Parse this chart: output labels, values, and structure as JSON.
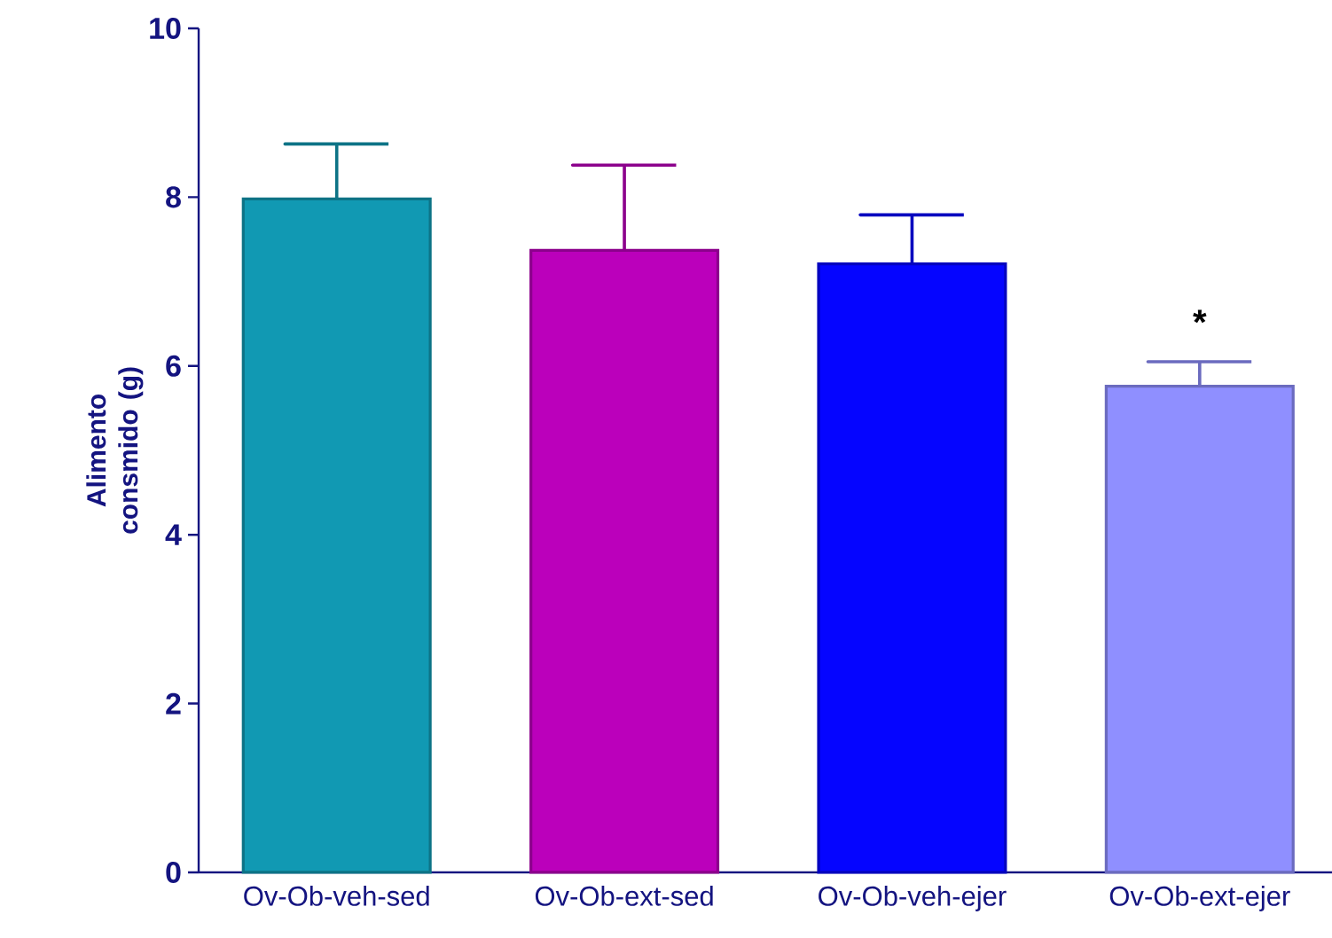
{
  "chart_data": {
    "type": "bar",
    "ylabel": "Alimento consmido (g)",
    "categories": [
      "Ov-Ob-veh-sed",
      "Ov-Ob-ext-sed",
      "Ov-Ob-veh-ejer",
      "Ov-Ob-ext-ejer"
    ],
    "values": [
      7.98,
      7.37,
      7.21,
      5.76
    ],
    "errors": [
      [
        7.98,
        8.63
      ],
      [
        7.37,
        8.38
      ],
      [
        7.21,
        7.79
      ],
      [
        5.76,
        6.05
      ]
    ],
    "colors": [
      "#1199b3",
      "#bb00bb",
      "#0505ff",
      "#8f8fff"
    ],
    "ylim": [
      0,
      10
    ],
    "yticks": [
      0,
      2,
      4,
      6,
      8,
      10
    ],
    "annotations": [
      "*"
    ]
  }
}
